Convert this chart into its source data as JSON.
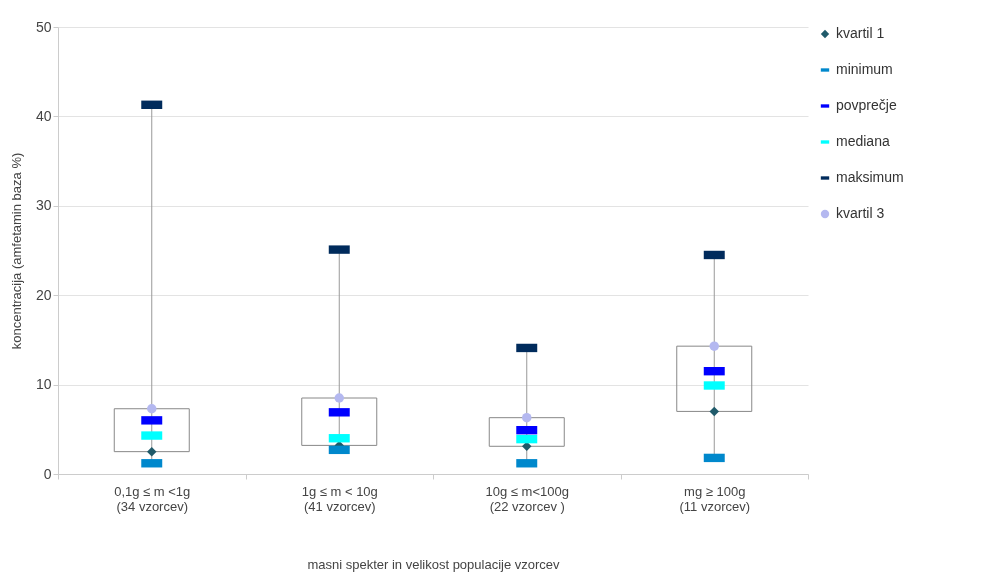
{
  "chart_data": {
    "type": "box",
    "xlabel": "masni spekter in velikost populacije vzorcev",
    "ylabel": "koncentracija (amfetamin baza %)",
    "categories": [
      "0,1g ≤ m <1g\n(34 vzorcev)",
      "1g  ≤ m < 10g\n(41 vzorcev)",
      "10g ≤ m<100g\n(22 vzorcev )",
      "mg ≥ 100g\n(11 vzorcev)"
    ],
    "boxes": [
      {
        "low": 1.2,
        "q1": 2.5,
        "q3": 7.3,
        "high": 41.3
      },
      {
        "low": 2.7,
        "q1": 3.2,
        "q3": 8.5,
        "high": 25.1
      },
      {
        "low": 1.2,
        "q1": 3.1,
        "q3": 6.3,
        "high": 14.1
      },
      {
        "low": 1.8,
        "q1": 7.0,
        "q3": 14.3,
        "high": 24.5
      }
    ],
    "series": [
      {
        "name": "kvartil 1",
        "color": "#1f5a6a",
        "type": "scatter",
        "marker": "diamond",
        "values": [
          2.5,
          3.2,
          3.1,
          7.0
        ]
      },
      {
        "name": "minimum",
        "color": "#0088cc",
        "type": "scatter",
        "values": [
          1.2,
          2.7,
          1.2,
          1.8
        ]
      },
      {
        "name": "povprečje",
        "color": "#0000ff",
        "type": "scatter",
        "values": [
          6.0,
          6.9,
          4.9,
          11.5
        ]
      },
      {
        "name": "mediana",
        "color": "#00ffff",
        "type": "scatter",
        "values": [
          4.3,
          4.0,
          3.9,
          9.9
        ]
      },
      {
        "name": "maksimum",
        "color": "#002b5c",
        "type": "scatter",
        "values": [
          41.3,
          25.1,
          14.1,
          24.5
        ]
      },
      {
        "name": "kvartil 3",
        "color": "#b4b8f0",
        "type": "scatter",
        "marker": "circle",
        "values": [
          7.3,
          8.5,
          6.3,
          14.3
        ]
      }
    ],
    "ylim": [
      0,
      50
    ],
    "yticks": [
      0,
      10,
      20,
      30,
      40,
      50
    ],
    "grid": "y",
    "legend": "right"
  }
}
